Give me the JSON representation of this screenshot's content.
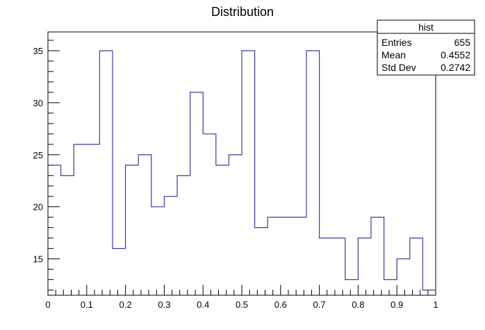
{
  "chart_data": {
    "type": "histogram",
    "title": "Distribution",
    "xlabel": "",
    "ylabel": "",
    "xlim": [
      0,
      1
    ],
    "ylim": [
      11.5,
      36.8
    ],
    "x_ticks": [
      "0",
      "0.1",
      "0.2",
      "0.3",
      "0.4",
      "0.5",
      "0.6",
      "0.7",
      "0.8",
      "0.9",
      "1"
    ],
    "y_ticks": [
      "15",
      "20",
      "25",
      "30",
      "35"
    ],
    "bin_edges": [
      0,
      0.0333,
      0.0667,
      0.1,
      0.1333,
      0.1667,
      0.2,
      0.2333,
      0.2667,
      0.3,
      0.3333,
      0.3667,
      0.4,
      0.4333,
      0.4667,
      0.5,
      0.5333,
      0.5667,
      0.6,
      0.6333,
      0.6667,
      0.7,
      0.7333,
      0.7667,
      0.8,
      0.8333,
      0.8667,
      0.9,
      0.9333,
      0.9667,
      1.0
    ],
    "counts": [
      24,
      23,
      26,
      26,
      35,
      16,
      24,
      25,
      20,
      21,
      23,
      31,
      27,
      24,
      25,
      35,
      18,
      19,
      19,
      19,
      35,
      17,
      17,
      13,
      17,
      19,
      13,
      15,
      17,
      12
    ],
    "line_color": "#3b3b9a",
    "grid": false,
    "stats_box": {
      "name": "hist",
      "placement": "top-right",
      "rows": [
        {
          "label": "Entries",
          "value": "655"
        },
        {
          "label": "Mean",
          "value": "0.4552"
        },
        {
          "label": "Std Dev",
          "value": "0.2742"
        }
      ]
    }
  }
}
